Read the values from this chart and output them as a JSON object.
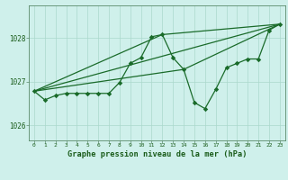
{
  "title": "Graphe pression niveau de la mer (hPa)",
  "background_color": "#cff0eb",
  "grid_color": "#aad8cc",
  "line_color": "#1a6b2a",
  "spine_color": "#5a8a6a",
  "xlim": [
    -0.5,
    23.5
  ],
  "ylim": [
    1025.65,
    1028.75
  ],
  "yticks": [
    1026,
    1027,
    1028
  ],
  "xticks": [
    0,
    1,
    2,
    3,
    4,
    5,
    6,
    7,
    8,
    9,
    10,
    11,
    12,
    13,
    14,
    15,
    16,
    17,
    18,
    19,
    20,
    21,
    22,
    23
  ],
  "series": [
    [
      0,
      1026.78
    ],
    [
      1,
      1026.58
    ],
    [
      2,
      1026.68
    ],
    [
      3,
      1026.73
    ],
    [
      4,
      1026.73
    ],
    [
      5,
      1026.73
    ],
    [
      6,
      1026.73
    ],
    [
      7,
      1026.73
    ],
    [
      8,
      1026.98
    ],
    [
      9,
      1027.42
    ],
    [
      10,
      1027.55
    ],
    [
      11,
      1028.03
    ],
    [
      12,
      1028.08
    ],
    [
      13,
      1027.55
    ],
    [
      14,
      1027.28
    ],
    [
      15,
      1026.52
    ],
    [
      16,
      1026.38
    ],
    [
      17,
      1026.82
    ],
    [
      18,
      1027.32
    ],
    [
      19,
      1027.42
    ],
    [
      20,
      1027.52
    ],
    [
      21,
      1027.52
    ],
    [
      22,
      1028.18
    ],
    [
      23,
      1028.32
    ]
  ],
  "line2": [
    [
      0,
      1026.78
    ],
    [
      23,
      1028.32
    ]
  ],
  "line3": [
    [
      0,
      1026.78
    ],
    [
      14,
      1027.28
    ],
    [
      23,
      1028.32
    ]
  ],
  "line4": [
    [
      0,
      1026.78
    ],
    [
      12,
      1028.08
    ],
    [
      23,
      1028.32
    ]
  ]
}
